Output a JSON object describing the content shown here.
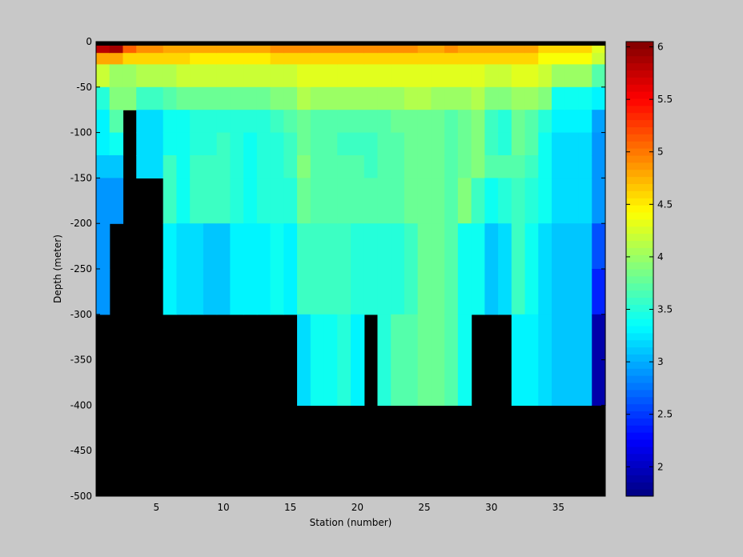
{
  "chart_data": {
    "type": "heatmap",
    "title": "",
    "xlabel": "Station (number)",
    "ylabel": "Depth (meter)",
    "xlim": [
      1,
      38
    ],
    "ylim": [
      -500,
      0
    ],
    "x_ticks": [
      5,
      10,
      15,
      20,
      25,
      30,
      35
    ],
    "y_ticks": [
      0,
      -50,
      -100,
      -150,
      -200,
      -250,
      -300,
      -350,
      -400,
      -450,
      -500
    ],
    "depth_bins": [
      0,
      -12.5,
      -25,
      -50,
      -75,
      -100,
      -125,
      -150,
      -200,
      -250,
      -300,
      -400
    ],
    "colorbar": {
      "min": 1.72,
      "max": 6.05,
      "ticks": [
        2,
        2.5,
        3,
        3.5,
        4,
        4.5,
        5,
        5.5,
        6
      ],
      "colormap": "jet"
    },
    "background_color": "#c8c8c8",
    "nodata_color": "#000000",
    "stations": [
      {
        "station": 1,
        "bottom": -250,
        "values": [
          5.8,
          4.8,
          4.2,
          3.5,
          3.3,
          3.3,
          3.1,
          2.9,
          2.9,
          2.9,
          null
        ]
      },
      {
        "station": 2,
        "bottom": -200,
        "values": [
          5.9,
          4.8,
          4.0,
          3.9,
          3.7,
          3.4,
          3.1,
          2.9,
          null,
          null,
          null
        ]
      },
      {
        "station": 3,
        "bottom": -75,
        "values": [
          5.1,
          4.6,
          4.0,
          3.9,
          null,
          null,
          null,
          null,
          null,
          null,
          null
        ]
      },
      {
        "station": 4,
        "bottom": -150,
        "values": [
          4.9,
          4.6,
          4.1,
          3.6,
          3.2,
          3.2,
          3.2,
          null,
          null,
          null,
          null
        ]
      },
      {
        "station": 5,
        "bottom": -150,
        "values": [
          4.9,
          4.6,
          4.1,
          3.6,
          3.2,
          3.2,
          3.2,
          null,
          null,
          null,
          null
        ]
      },
      {
        "station": 6,
        "bottom": -250,
        "values": [
          4.8,
          4.6,
          4.1,
          3.7,
          3.4,
          3.4,
          3.6,
          3.6,
          3.3,
          3.3,
          null
        ]
      },
      {
        "station": 7,
        "bottom": -250,
        "values": [
          4.8,
          4.6,
          4.2,
          3.8,
          3.4,
          3.4,
          3.4,
          3.4,
          3.2,
          3.2,
          null
        ]
      },
      {
        "station": 8,
        "bottom": -250,
        "values": [
          4.8,
          4.5,
          4.2,
          3.8,
          3.5,
          3.5,
          3.6,
          3.6,
          3.2,
          3.2,
          null
        ]
      },
      {
        "station": 9,
        "bottom": -250,
        "values": [
          4.8,
          4.5,
          4.2,
          3.8,
          3.5,
          3.5,
          3.6,
          3.6,
          3.1,
          3.1,
          null
        ]
      },
      {
        "station": 10,
        "bottom": -250,
        "values": [
          4.8,
          4.5,
          4.2,
          3.8,
          3.5,
          3.6,
          3.6,
          3.6,
          3.1,
          3.1,
          null
        ]
      },
      {
        "station": 11,
        "bottom": -250,
        "values": [
          4.8,
          4.5,
          4.2,
          3.8,
          3.5,
          3.5,
          3.5,
          3.5,
          3.3,
          3.3,
          null
        ]
      },
      {
        "station": 12,
        "bottom": -250,
        "values": [
          4.8,
          4.5,
          4.2,
          3.8,
          3.5,
          3.4,
          3.4,
          3.4,
          3.3,
          3.3,
          null
        ]
      },
      {
        "station": 13,
        "bottom": -250,
        "values": [
          4.8,
          4.5,
          4.2,
          3.8,
          3.5,
          3.5,
          3.5,
          3.5,
          3.3,
          3.3,
          null
        ]
      },
      {
        "station": 14,
        "bottom": -250,
        "values": [
          4.9,
          4.6,
          4.2,
          3.9,
          3.6,
          3.5,
          3.5,
          3.5,
          3.4,
          3.4,
          null
        ]
      },
      {
        "station": 15,
        "bottom": -250,
        "values": [
          4.9,
          4.6,
          4.2,
          3.9,
          3.7,
          3.6,
          3.6,
          3.5,
          3.3,
          3.3,
          null
        ]
      },
      {
        "station": 16,
        "bottom": -300,
        "values": [
          4.9,
          4.6,
          4.3,
          4.1,
          3.8,
          3.8,
          3.9,
          3.8,
          3.6,
          3.6,
          3.2
        ]
      },
      {
        "station": 17,
        "bottom": -300,
        "values": [
          4.9,
          4.6,
          4.3,
          4.0,
          3.7,
          3.7,
          3.7,
          3.7,
          3.6,
          3.6,
          3.4
        ]
      },
      {
        "station": 18,
        "bottom": -300,
        "values": [
          4.9,
          4.6,
          4.3,
          4.0,
          3.7,
          3.7,
          3.7,
          3.7,
          3.6,
          3.6,
          3.4
        ]
      },
      {
        "station": 19,
        "bottom": -300,
        "values": [
          4.9,
          4.6,
          4.3,
          4.0,
          3.7,
          3.6,
          3.7,
          3.7,
          3.6,
          3.6,
          3.5
        ]
      },
      {
        "station": 20,
        "bottom": -300,
        "values": [
          4.9,
          4.6,
          4.3,
          4.0,
          3.7,
          3.6,
          3.7,
          3.7,
          3.5,
          3.5,
          3.3
        ]
      },
      {
        "station": 21,
        "bottom": -250,
        "values": [
          4.9,
          4.6,
          4.3,
          4.0,
          3.7,
          3.6,
          3.6,
          3.7,
          3.5,
          3.5,
          null
        ]
      },
      {
        "station": 22,
        "bottom": -300,
        "values": [
          4.9,
          4.6,
          4.3,
          4.0,
          3.7,
          3.7,
          3.7,
          3.7,
          3.5,
          3.5,
          3.5
        ]
      },
      {
        "station": 23,
        "bottom": -300,
        "values": [
          4.9,
          4.6,
          4.3,
          4.0,
          3.8,
          3.7,
          3.7,
          3.7,
          3.5,
          3.5,
          3.7
        ]
      },
      {
        "station": 24,
        "bottom": -300,
        "values": [
          4.9,
          4.6,
          4.3,
          4.1,
          3.8,
          3.8,
          3.8,
          3.8,
          3.6,
          3.6,
          3.7
        ]
      },
      {
        "station": 25,
        "bottom": -300,
        "values": [
          4.8,
          4.6,
          4.3,
          4.1,
          3.8,
          3.8,
          3.8,
          3.8,
          3.8,
          3.8,
          3.8
        ]
      },
      {
        "station": 26,
        "bottom": -300,
        "values": [
          4.8,
          4.6,
          4.3,
          4.0,
          3.8,
          3.8,
          3.8,
          3.8,
          3.8,
          3.8,
          3.8
        ]
      },
      {
        "station": 27,
        "bottom": -300,
        "values": [
          4.9,
          4.6,
          4.3,
          4.0,
          3.7,
          3.7,
          3.7,
          3.7,
          3.7,
          3.7,
          3.7
        ]
      },
      {
        "station": 28,
        "bottom": -300,
        "values": [
          4.8,
          4.6,
          4.3,
          4.0,
          3.8,
          3.8,
          3.8,
          3.9,
          3.4,
          3.4,
          3.4
        ]
      },
      {
        "station": 29,
        "bottom": -250,
        "values": [
          4.8,
          4.6,
          4.3,
          4.1,
          3.9,
          3.9,
          3.9,
          3.6,
          3.4,
          3.4,
          null
        ]
      },
      {
        "station": 30,
        "bottom": -250,
        "values": [
          4.8,
          4.6,
          4.2,
          3.9,
          3.6,
          3.6,
          3.7,
          3.4,
          3.1,
          3.1,
          null
        ]
      },
      {
        "station": 31,
        "bottom": -250,
        "values": [
          4.8,
          4.6,
          4.2,
          3.9,
          3.5,
          3.5,
          3.7,
          3.5,
          3.2,
          3.2,
          null
        ]
      },
      {
        "station": 32,
        "bottom": -300,
        "values": [
          4.8,
          4.6,
          4.3,
          4.0,
          3.8,
          3.8,
          3.7,
          3.6,
          3.6,
          3.6,
          3.3
        ]
      },
      {
        "station": 33,
        "bottom": -300,
        "values": [
          4.8,
          4.6,
          4.3,
          4.0,
          3.7,
          3.7,
          3.6,
          3.5,
          3.4,
          3.4,
          3.3
        ]
      },
      {
        "station": 34,
        "bottom": -300,
        "values": [
          4.6,
          4.4,
          4.2,
          3.9,
          3.5,
          3.4,
          3.4,
          3.4,
          3.2,
          3.2,
          3.2
        ]
      },
      {
        "station": 35,
        "bottom": -400,
        "values": [
          4.6,
          4.4,
          4.0,
          3.4,
          3.3,
          3.2,
          3.2,
          3.2,
          3.1,
          3.1,
          3.1,
          3.1
        ]
      },
      {
        "station": 36,
        "bottom": -400,
        "values": [
          4.6,
          4.4,
          4.0,
          3.4,
          3.3,
          3.2,
          3.2,
          3.2,
          3.1,
          3.1,
          3.1,
          3.1
        ]
      },
      {
        "station": 37,
        "bottom": -300,
        "values": [
          4.6,
          4.4,
          4.0,
          3.4,
          3.3,
          3.2,
          3.2,
          3.2,
          3.1,
          3.1,
          3.1
        ]
      },
      {
        "station": 38,
        "bottom": -400,
        "values": [
          4.3,
          4.2,
          3.7,
          3.3,
          2.95,
          2.9,
          2.9,
          2.9,
          2.6,
          2.4,
          1.9,
          1.8
        ]
      }
    ]
  }
}
